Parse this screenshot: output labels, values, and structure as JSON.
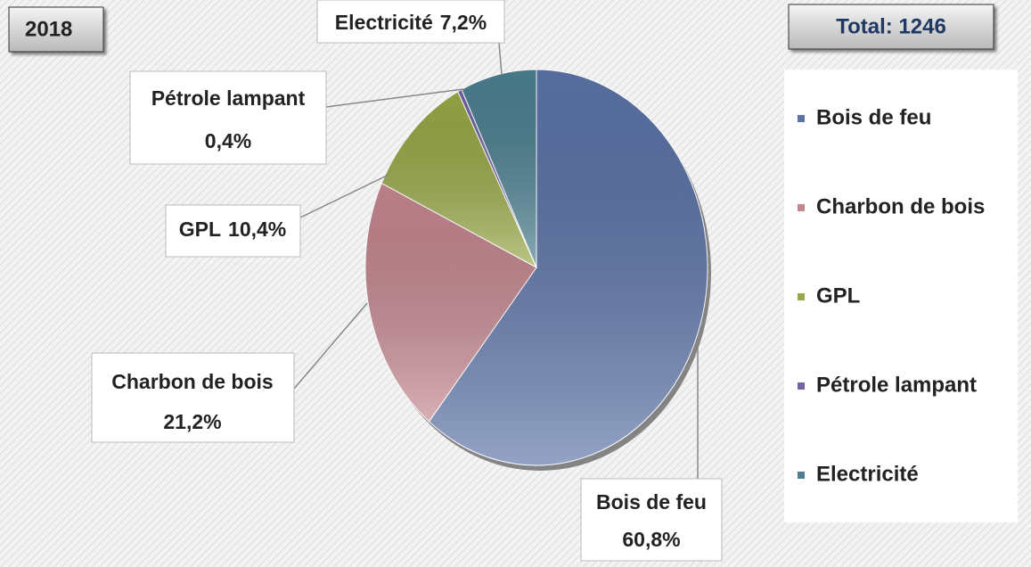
{
  "chart_data": {
    "type": "pie",
    "title": "2018",
    "subtitle": "Total: 1246",
    "categories": [
      "Bois de feu",
      "Charbon de bois",
      "GPL",
      "Pétrole lampant",
      "Electricité"
    ],
    "values": [
      60.8,
      21.2,
      10.4,
      0.4,
      7.2
    ],
    "value_labels": [
      "60,8%",
      "21,2%",
      "10,4%",
      "0,4%",
      "7,2%"
    ],
    "colors": [
      "#5a72a6",
      "#c4868f",
      "#97a845",
      "#7563a6",
      "#4b7f90"
    ],
    "legend": "right"
  }
}
